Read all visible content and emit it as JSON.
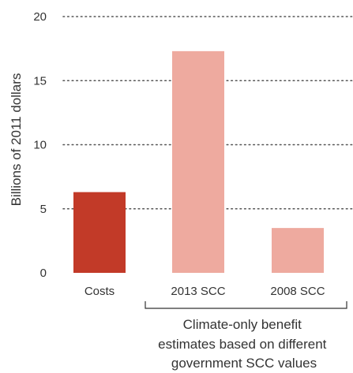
{
  "chart_data": {
    "type": "bar",
    "ylabel": "Billions of 2011 dollars",
    "xlabel": "",
    "ylim": [
      0,
      20
    ],
    "yticks": [
      0,
      5,
      10,
      15,
      20
    ],
    "grid": "horizontal dotted",
    "categories": [
      "Costs",
      "2013 SCC",
      "2008 SCC"
    ],
    "values": [
      6.3,
      17.3,
      3.5
    ],
    "colors": [
      "#c23a28",
      "#eeaa9f",
      "#eeaa9f"
    ],
    "annotation": {
      "lines": [
        "Climate-only benefit",
        "estimates based on different",
        "government SCC values"
      ],
      "brackets_categories": [
        "2013 SCC",
        "2008 SCC"
      ]
    }
  }
}
